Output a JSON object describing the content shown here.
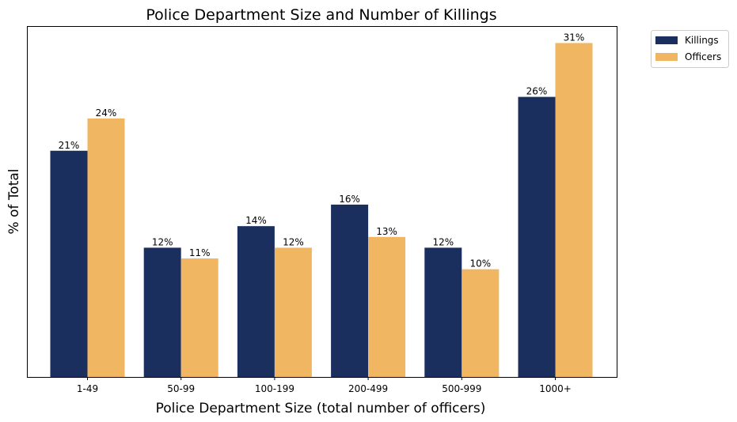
{
  "chart_data": {
    "type": "bar",
    "title": "Police Department Size and Number of Killings",
    "xlabel": "Police Department Size (total number of officers)",
    "ylabel": "% of Total",
    "categories": [
      "1-49",
      "50-99",
      "100-199",
      "200-499",
      "500-999",
      "1000+"
    ],
    "series": [
      {
        "name": "Killings",
        "color": "#1a2f5e",
        "values": [
          21,
          12,
          14,
          16,
          12,
          26
        ],
        "labels": [
          "21%",
          "12%",
          "14%",
          "16%",
          "12%",
          "26%"
        ]
      },
      {
        "name": "Officers",
        "color": "#f0b661",
        "values": [
          24,
          11,
          12,
          13,
          10,
          31
        ],
        "labels": [
          "24%",
          "11%",
          "12%",
          "13%",
          "10%",
          "31%"
        ]
      }
    ],
    "ylim": [
      0,
      32.5
    ],
    "grid": false,
    "legend": "outside-top-right",
    "yticks_visible": false
  }
}
